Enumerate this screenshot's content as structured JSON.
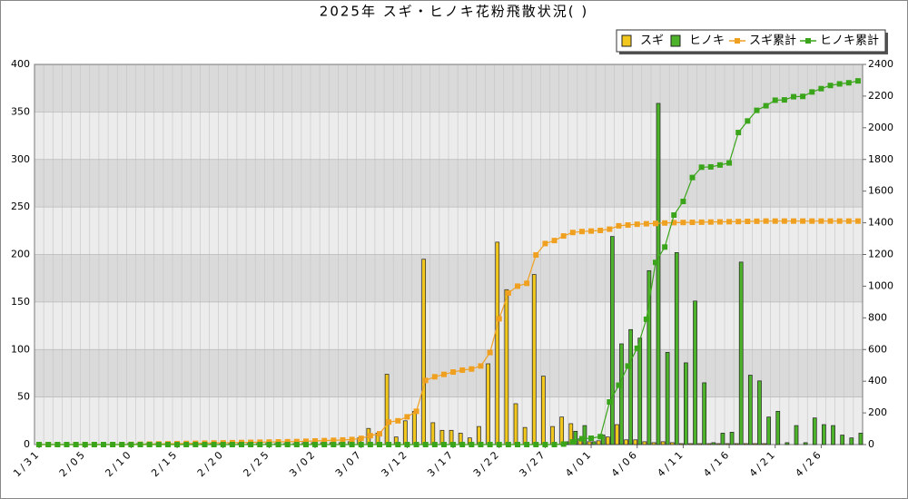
{
  "chart_data": {
    "type": "bar",
    "title": "2025年 スギ・ヒノキ花粉飛散状況( )",
    "categories": [
      "1/31",
      null,
      null,
      null,
      null,
      "2/05",
      null,
      null,
      null,
      null,
      "2/10",
      null,
      null,
      null,
      null,
      "2/15",
      null,
      null,
      null,
      null,
      "2/20",
      null,
      null,
      null,
      null,
      "2/25",
      null,
      null,
      null,
      null,
      "3/02",
      null,
      null,
      null,
      null,
      "3/07",
      null,
      null,
      null,
      null,
      "3/12",
      null,
      null,
      null,
      null,
      "3/17",
      null,
      null,
      null,
      null,
      "3/22",
      null,
      null,
      null,
      null,
      "3/27",
      null,
      null,
      null,
      null,
      "4/01",
      null,
      null,
      null,
      null,
      "4/06",
      null,
      null,
      null,
      null,
      "4/11",
      null,
      null,
      null,
      null,
      "4/16",
      null,
      null,
      null,
      null,
      "4/21",
      null,
      null,
      null,
      null,
      "4/26",
      null,
      null,
      null,
      null
    ],
    "series": [
      {
        "name": "スギ",
        "type": "bar",
        "color": "#f2c81e",
        "values": [
          0,
          0,
          0,
          0,
          0,
          0,
          0,
          0,
          0,
          0,
          1,
          1,
          1,
          1,
          1,
          1,
          1,
          1,
          1,
          1,
          1,
          1,
          1,
          1,
          1,
          1,
          1,
          1,
          1,
          2,
          2,
          2,
          2,
          2,
          3,
          7,
          17,
          12,
          74,
          8,
          25,
          35,
          195,
          23,
          15,
          15,
          12,
          7,
          19,
          85,
          213,
          163,
          43,
          18,
          179,
          72,
          19,
          29,
          22,
          6,
          3,
          4,
          8,
          21,
          5,
          5,
          3,
          2,
          3,
          2,
          1,
          1,
          1,
          1,
          1,
          1,
          1,
          1,
          1,
          1,
          0,
          0,
          0,
          0,
          0,
          0,
          0,
          0,
          0,
          0
        ]
      },
      {
        "name": "ヒノキ",
        "type": "bar",
        "color": "#4db32a",
        "values": [
          0,
          0,
          0,
          0,
          0,
          0,
          0,
          0,
          0,
          0,
          0,
          0,
          0,
          0,
          0,
          0,
          0,
          0,
          0,
          0,
          0,
          0,
          0,
          0,
          0,
          0,
          0,
          0,
          0,
          0,
          0,
          0,
          0,
          0,
          0,
          0,
          0,
          0,
          0,
          0,
          0,
          0,
          0,
          0,
          0,
          0,
          0,
          0,
          0,
          0,
          0,
          0,
          0,
          0,
          0,
          0,
          0,
          3,
          14,
          20,
          3,
          10,
          219,
          106,
          121,
          112,
          183,
          359,
          97,
          202,
          86,
          151,
          65,
          2,
          12,
          13,
          192,
          73,
          67,
          29,
          35,
          2,
          20,
          2,
          28,
          21,
          20,
          10,
          7,
          12
        ]
      },
      {
        "name": "スギ累計",
        "type": "line",
        "axis": "y2",
        "color": "#f0a020",
        "values": [
          0,
          0,
          0,
          0,
          0,
          0,
          0,
          0,
          0,
          0,
          1,
          2,
          3,
          4,
          5,
          6,
          7,
          8,
          9,
          10,
          11,
          12,
          13,
          14,
          15,
          16,
          17,
          18,
          19,
          21,
          23,
          25,
          27,
          29,
          32,
          39,
          56,
          68,
          142,
          150,
          175,
          210,
          405,
          428,
          443,
          458,
          470,
          477,
          496,
          581,
          794,
          957,
          1000,
          1018,
          1197,
          1269,
          1288,
          1317,
          1339,
          1345,
          1348,
          1352,
          1360,
          1381,
          1386,
          1391,
          1394,
          1396,
          1399,
          1401,
          1402,
          1403,
          1404,
          1405,
          1406,
          1407,
          1408,
          1409,
          1410,
          1411,
          1411,
          1411,
          1411,
          1411,
          1411,
          1411,
          1411,
          1411,
          1411,
          1411
        ]
      },
      {
        "name": "ヒノキ累計",
        "type": "line",
        "axis": "y2",
        "color": "#3aa51a",
        "values": [
          0,
          0,
          0,
          0,
          0,
          0,
          0,
          0,
          0,
          0,
          0,
          0,
          0,
          0,
          0,
          0,
          0,
          0,
          0,
          0,
          0,
          0,
          0,
          0,
          0,
          0,
          0,
          0,
          0,
          0,
          0,
          0,
          0,
          0,
          0,
          0,
          0,
          0,
          0,
          0,
          0,
          0,
          0,
          0,
          0,
          0,
          0,
          0,
          0,
          0,
          0,
          0,
          0,
          0,
          0,
          0,
          0,
          3,
          17,
          37,
          40,
          50,
          269,
          375,
          496,
          608,
          791,
          1150,
          1247,
          1449,
          1535,
          1686,
          1751,
          1753,
          1765,
          1778,
          1970,
          2043,
          2110,
          2139,
          2174,
          2176,
          2196,
          2198,
          2226,
          2247,
          2267,
          2277,
          2284,
          2296
        ]
      }
    ],
    "ylim": [
      0,
      400
    ],
    "yticks": [
      0,
      50,
      100,
      150,
      200,
      250,
      300,
      350,
      400
    ],
    "y2lim": [
      0,
      2400
    ],
    "y2ticks": [
      0,
      200,
      400,
      600,
      800,
      1000,
      1200,
      1400,
      1600,
      1800,
      2000,
      2200,
      2400
    ],
    "grid": true,
    "legend": "top-right"
  }
}
